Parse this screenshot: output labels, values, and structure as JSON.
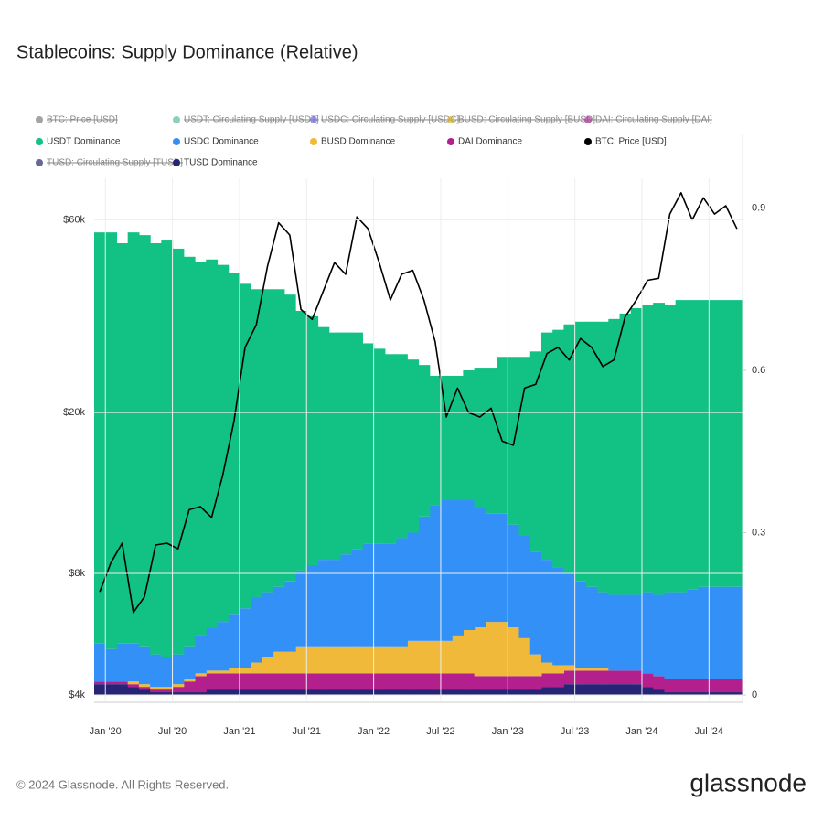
{
  "chart_data": {
    "type": "stacked-area-line",
    "title": "Stablecoins: Supply Dominance (Relative)",
    "footer": "© 2024 Glassnode. All Rights Reserved.",
    "brand": "glassnode",
    "x": [
      "2019-12",
      "2020-01",
      "2020-02",
      "2020-03",
      "2020-04",
      "2020-05",
      "2020-06",
      "2020-07",
      "2020-08",
      "2020-09",
      "2020-10",
      "2020-11",
      "2020-12",
      "2021-01",
      "2021-02",
      "2021-03",
      "2021-04",
      "2021-05",
      "2021-06",
      "2021-07",
      "2021-08",
      "2021-09",
      "2021-10",
      "2021-11",
      "2021-12",
      "2022-01",
      "2022-02",
      "2022-03",
      "2022-04",
      "2022-05",
      "2022-06",
      "2022-07",
      "2022-08",
      "2022-09",
      "2022-10",
      "2022-11",
      "2022-12",
      "2023-01",
      "2023-02",
      "2023-03",
      "2023-04",
      "2023-05",
      "2023-06",
      "2023-07",
      "2023-08",
      "2023-09",
      "2023-10",
      "2023-11",
      "2023-12",
      "2024-01",
      "2024-02",
      "2024-03",
      "2024-04",
      "2024-05",
      "2024-06",
      "2024-07",
      "2024-08",
      "2024-09"
    ],
    "xlim": [
      "2019-12",
      "2024-10"
    ],
    "xticks": [
      {
        "value": "2020-01",
        "label": "Jan '20"
      },
      {
        "value": "2020-07",
        "label": "Jul '20"
      },
      {
        "value": "2021-01",
        "label": "Jan '21"
      },
      {
        "value": "2021-07",
        "label": "Jul '21"
      },
      {
        "value": "2022-01",
        "label": "Jan '22"
      },
      {
        "value": "2022-07",
        "label": "Jul '22"
      },
      {
        "value": "2023-01",
        "label": "Jan '23"
      },
      {
        "value": "2023-07",
        "label": "Jul '23"
      },
      {
        "value": "2024-01",
        "label": "Jan '24"
      },
      {
        "value": "2024-07",
        "label": "Jul '24"
      }
    ],
    "ylim": [
      4000,
      76000
    ],
    "log_y": true,
    "yticks": [
      {
        "value": 4000,
        "label": "$4k"
      },
      {
        "value": 8000,
        "label": "$8k"
      },
      {
        "value": 20000,
        "label": "$20k"
      },
      {
        "value": 60000,
        "label": "$60k"
      }
    ],
    "y2lim": [
      0,
      0.955
    ],
    "y2ticks": [
      0,
      0.3,
      0.6,
      0.9
    ],
    "grid": true,
    "series": [
      {
        "name": "BTC: Price [USD]",
        "color": "#7a7a7a",
        "hidden": true
      },
      {
        "name": "USDT: Circulating Supply [USDT]",
        "color": "#5bbd99",
        "hidden": true
      },
      {
        "name": "USDC: Circulating Supply [USDC]",
        "color": "#7570d9",
        "hidden": true
      },
      {
        "name": "BUSD: Circulating Supply [BUSD]",
        "color": "#d9b32e",
        "hidden": true
      },
      {
        "name": "DAI: Circulating Supply [DAI]",
        "color": "#b0399b",
        "hidden": true
      },
      {
        "name": "USDT Dominance",
        "color": "#12c184",
        "axis": "y2",
        "values": [
          0.76,
          0.77,
          0.74,
          0.76,
          0.76,
          0.76,
          0.77,
          0.75,
          0.72,
          0.69,
          0.68,
          0.66,
          0.63,
          0.6,
          0.57,
          0.56,
          0.55,
          0.53,
          0.48,
          0.46,
          0.43,
          0.42,
          0.41,
          0.4,
          0.37,
          0.36,
          0.35,
          0.34,
          0.32,
          0.28,
          0.24,
          0.23,
          0.23,
          0.24,
          0.26,
          0.27,
          0.29,
          0.31,
          0.33,
          0.37,
          0.42,
          0.44,
          0.46,
          0.48,
          0.49,
          0.5,
          0.51,
          0.52,
          0.53,
          0.53,
          0.54,
          0.53,
          0.54,
          0.535,
          0.53,
          0.53,
          0.53,
          0.53
        ]
      },
      {
        "name": "USDC Dominance",
        "color": "#3390f7",
        "axis": "y2",
        "values": [
          0.07,
          0.06,
          0.07,
          0.07,
          0.07,
          0.06,
          0.055,
          0.055,
          0.06,
          0.07,
          0.08,
          0.09,
          0.1,
          0.11,
          0.12,
          0.12,
          0.12,
          0.13,
          0.14,
          0.15,
          0.16,
          0.16,
          0.17,
          0.18,
          0.19,
          0.19,
          0.19,
          0.2,
          0.2,
          0.23,
          0.25,
          0.26,
          0.25,
          0.24,
          0.22,
          0.2,
          0.2,
          0.19,
          0.19,
          0.19,
          0.19,
          0.18,
          0.17,
          0.16,
          0.15,
          0.14,
          0.14,
          0.14,
          0.14,
          0.15,
          0.15,
          0.16,
          0.16,
          0.165,
          0.17,
          0.17,
          0.17,
          0.17
        ]
      },
      {
        "name": "BUSD Dominance",
        "color": "#f0b93a",
        "axis": "y2",
        "values": [
          0,
          0,
          0,
          0.005,
          0.005,
          0.005,
          0.005,
          0.005,
          0.005,
          0.005,
          0.005,
          0.005,
          0.01,
          0.01,
          0.02,
          0.03,
          0.04,
          0.04,
          0.05,
          0.05,
          0.05,
          0.05,
          0.05,
          0.05,
          0.05,
          0.05,
          0.05,
          0.05,
          0.06,
          0.06,
          0.06,
          0.06,
          0.07,
          0.08,
          0.09,
          0.1,
          0.1,
          0.09,
          0.07,
          0.04,
          0.02,
          0.015,
          0.01,
          0.005,
          0.005,
          0.005,
          0,
          0,
          0,
          0,
          0,
          0,
          0,
          0,
          0,
          0,
          0,
          0
        ]
      },
      {
        "name": "DAI Dominance",
        "color": "#b3208e",
        "axis": "y2",
        "values": [
          0.005,
          0.005,
          0.005,
          0.005,
          0.005,
          0.005,
          0.005,
          0.01,
          0.02,
          0.03,
          0.03,
          0.03,
          0.03,
          0.03,
          0.03,
          0.03,
          0.03,
          0.03,
          0.03,
          0.03,
          0.03,
          0.03,
          0.03,
          0.03,
          0.03,
          0.03,
          0.03,
          0.03,
          0.03,
          0.03,
          0.03,
          0.03,
          0.03,
          0.03,
          0.025,
          0.025,
          0.025,
          0.025,
          0.025,
          0.025,
          0.025,
          0.025,
          0.025,
          0.025,
          0.025,
          0.025,
          0.025,
          0.025,
          0.025,
          0.025,
          0.025,
          0.025,
          0.025,
          0.025,
          0.025,
          0.025,
          0.025,
          0.025
        ]
      },
      {
        "name": "BTC: Price [USD]",
        "color": "#000000",
        "axis": "y",
        "values": [
          7200,
          8500,
          9500,
          6400,
          7000,
          9400,
          9500,
          9200,
          11500,
          11700,
          11000,
          14000,
          19000,
          29000,
          33000,
          46000,
          59000,
          55000,
          36000,
          34000,
          40000,
          47000,
          44000,
          61000,
          57000,
          47000,
          38000,
          44000,
          45000,
          38000,
          30000,
          19500,
          23000,
          20000,
          19500,
          20500,
          17000,
          16600,
          23000,
          23500,
          28000,
          29000,
          27000,
          30500,
          29000,
          26000,
          27000,
          34500,
          38000,
          42500,
          43000,
          62000,
          70000,
          60000,
          68000,
          62000,
          65000,
          57000
        ]
      },
      {
        "name": "TUSD: Circulating Supply [TUSD]",
        "color": "#29276b",
        "hidden": true
      },
      {
        "name": "TUSD Dominance",
        "color": "#262474",
        "axis": "y2",
        "values": [
          0.02,
          0.02,
          0.02,
          0.015,
          0.01,
          0.005,
          0.005,
          0.005,
          0.005,
          0.005,
          0.01,
          0.01,
          0.01,
          0.01,
          0.01,
          0.01,
          0.01,
          0.01,
          0.01,
          0.01,
          0.01,
          0.01,
          0.01,
          0.01,
          0.01,
          0.01,
          0.01,
          0.01,
          0.01,
          0.01,
          0.01,
          0.01,
          0.01,
          0.01,
          0.01,
          0.01,
          0.01,
          0.01,
          0.01,
          0.01,
          0.015,
          0.015,
          0.02,
          0.02,
          0.02,
          0.02,
          0.02,
          0.02,
          0.02,
          0.015,
          0.01,
          0.005,
          0.005,
          0.005,
          0.005,
          0.005,
          0.005,
          0.005
        ]
      }
    ]
  }
}
